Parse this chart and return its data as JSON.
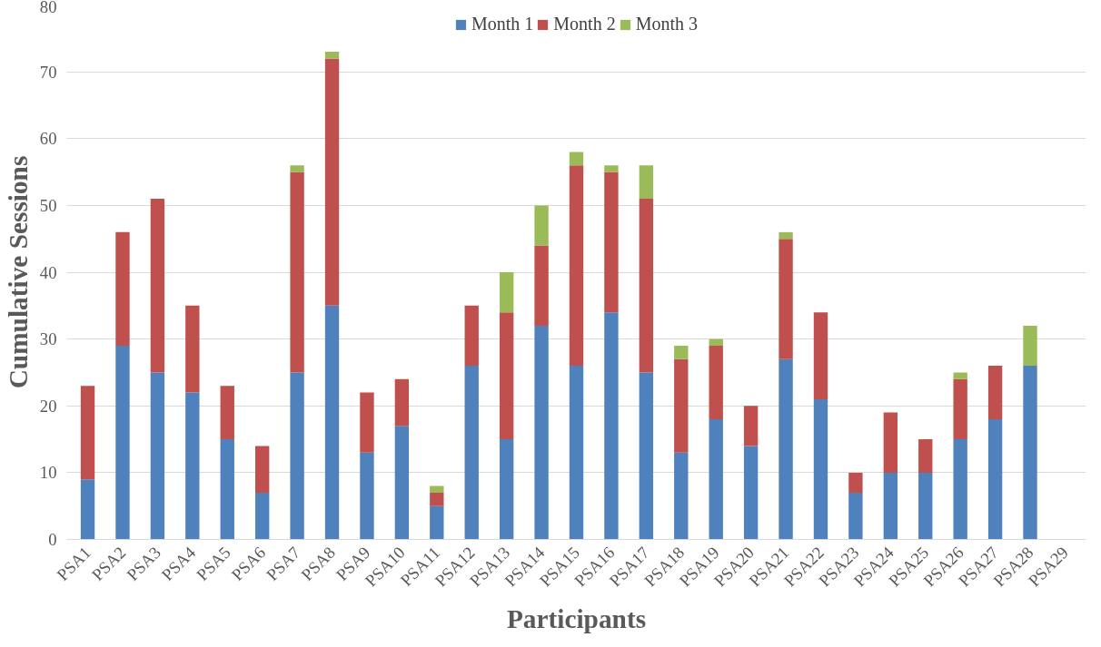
{
  "chart_data": {
    "type": "bar",
    "stacked": true,
    "xlabel": "Participants",
    "ylabel": "Cumulative Sessions",
    "categories": [
      "PSA1",
      "PSA2",
      "PSA3",
      "PSA4",
      "PSA5",
      "PSA6",
      "PSA7",
      "PSA8",
      "PSA9",
      "PSA10",
      "PSA11",
      "PSA12",
      "PSA13",
      "PSA14",
      "PSA15",
      "PSA16",
      "PSA17",
      "PSA18",
      "PSA19",
      "PSA20",
      "PSA21",
      "PSA22",
      "PSA23",
      "PSA24",
      "PSA25",
      "PSA26",
      "PSA27",
      "PSA28",
      "PSA29"
    ],
    "series": [
      {
        "name": "Month 1",
        "color": "#4f81bd",
        "values": [
          9,
          29,
          25,
          22,
          15,
          7,
          25,
          35,
          13,
          17,
          5,
          26,
          15,
          32,
          26,
          34,
          25,
          13,
          18,
          14,
          27,
          21,
          7,
          10,
          10,
          15,
          18,
          26,
          null
        ]
      },
      {
        "name": "Month 2",
        "color": "#c0504d",
        "values": [
          14,
          17,
          26,
          13,
          8,
          7,
          30,
          37,
          9,
          7,
          2,
          9,
          19,
          12,
          30,
          21,
          26,
          14,
          11,
          6,
          18,
          13,
          3,
          9,
          5,
          9,
          8,
          0,
          null
        ]
      },
      {
        "name": "Month 3",
        "color": "#9bbb59",
        "values": [
          0,
          0,
          0,
          0,
          0,
          0,
          1,
          1,
          0,
          0,
          1,
          0,
          6,
          6,
          2,
          1,
          5,
          2,
          1,
          0,
          1,
          0,
          0,
          0,
          0,
          1,
          0,
          6,
          null
        ]
      }
    ],
    "ylim": [
      0,
      80
    ],
    "yticks": [
      0,
      10,
      20,
      30,
      40,
      50,
      60,
      70,
      80
    ],
    "grid": "y",
    "legend": "top"
  }
}
